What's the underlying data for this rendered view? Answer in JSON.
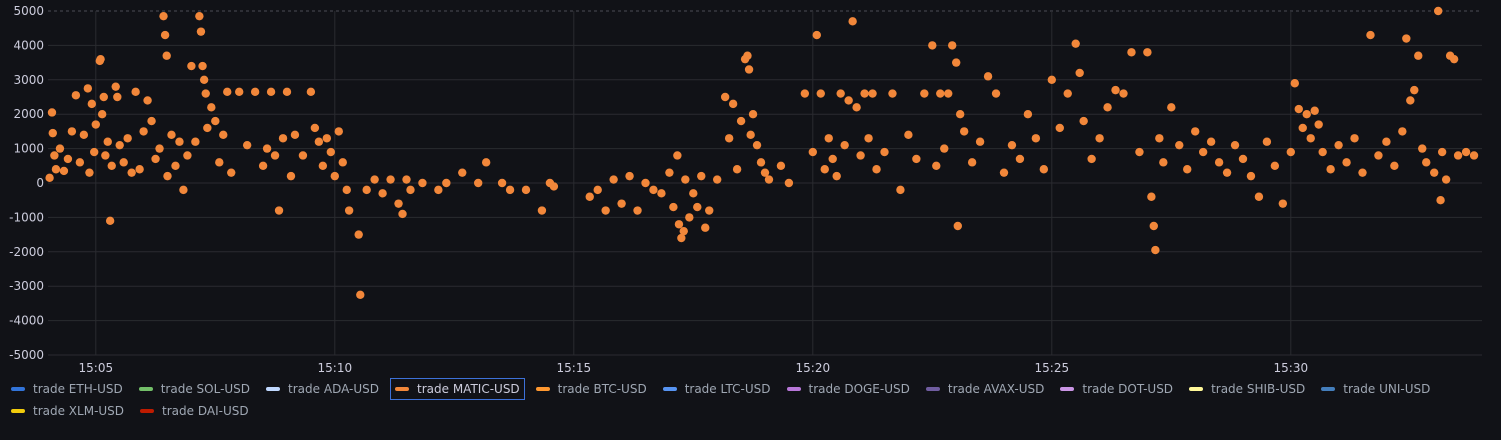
{
  "chart_data": {
    "type": "scatter",
    "title": "",
    "xlabel": "",
    "ylabel": "",
    "ylim": [
      -5000,
      5000
    ],
    "y_ticks": [
      5000,
      4000,
      3000,
      2000,
      1000,
      0,
      -1000,
      -2000,
      -3000,
      -4000,
      -5000
    ],
    "x_range": [
      "15:04:00",
      "15:34:00"
    ],
    "x_ticks": [
      "15:05",
      "15:10",
      "15:15",
      "15:20",
      "15:25",
      "15:30"
    ],
    "grid": true,
    "legend_position": "bottom",
    "colors": {
      "background": "#111217",
      "grid": "#2a2b30",
      "point": "#f2873a"
    },
    "series": [
      {
        "name": "trade MATIC-USD",
        "color": "#f2873a",
        "points": [
          [
            "15:04:02",
            150
          ],
          [
            "15:04:05",
            2050
          ],
          [
            "15:04:06",
            1450
          ],
          [
            "15:04:08",
            800
          ],
          [
            "15:04:10",
            400
          ],
          [
            "15:04:15",
            1000
          ],
          [
            "15:04:20",
            350
          ],
          [
            "15:04:25",
            700
          ],
          [
            "15:04:30",
            1500
          ],
          [
            "15:04:35",
            2550
          ],
          [
            "15:04:40",
            600
          ],
          [
            "15:04:45",
            1400
          ],
          [
            "15:04:50",
            2750
          ],
          [
            "15:04:55",
            2300
          ],
          [
            "15:05:00",
            1700
          ],
          [
            "15:04:52",
            300
          ],
          [
            "15:04:58",
            900
          ],
          [
            "15:05:05",
            3550
          ],
          [
            "15:05:06",
            3600
          ],
          [
            "15:05:08",
            2000
          ],
          [
            "15:05:10",
            2500
          ],
          [
            "15:05:12",
            800
          ],
          [
            "15:05:15",
            1200
          ],
          [
            "15:05:18",
            -1100
          ],
          [
            "15:05:20",
            500
          ],
          [
            "15:05:25",
            2800
          ],
          [
            "15:05:27",
            2500
          ],
          [
            "15:05:30",
            1100
          ],
          [
            "15:05:35",
            600
          ],
          [
            "15:05:40",
            1300
          ],
          [
            "15:05:45",
            300
          ],
          [
            "15:05:50",
            2650
          ],
          [
            "15:05:55",
            400
          ],
          [
            "15:06:00",
            1500
          ],
          [
            "15:06:05",
            2400
          ],
          [
            "15:06:10",
            1800
          ],
          [
            "15:06:15",
            700
          ],
          [
            "15:06:20",
            1000
          ],
          [
            "15:06:25",
            4850
          ],
          [
            "15:06:27",
            4300
          ],
          [
            "15:06:29",
            3700
          ],
          [
            "15:06:30",
            200
          ],
          [
            "15:06:35",
            1400
          ],
          [
            "15:06:40",
            500
          ],
          [
            "15:06:45",
            1200
          ],
          [
            "15:06:50",
            -200
          ],
          [
            "15:06:55",
            800
          ],
          [
            "15:07:00",
            3400
          ],
          [
            "15:07:05",
            1200
          ],
          [
            "15:07:10",
            4850
          ],
          [
            "15:07:12",
            4400
          ],
          [
            "15:07:14",
            3400
          ],
          [
            "15:07:16",
            3000
          ],
          [
            "15:07:18",
            2600
          ],
          [
            "15:07:20",
            1600
          ],
          [
            "15:07:25",
            2200
          ],
          [
            "15:07:30",
            1800
          ],
          [
            "15:07:35",
            600
          ],
          [
            "15:07:40",
            1400
          ],
          [
            "15:07:45",
            2650
          ],
          [
            "15:07:50",
            300
          ],
          [
            "15:08:00",
            2650
          ],
          [
            "15:08:10",
            1100
          ],
          [
            "15:08:20",
            2650
          ],
          [
            "15:08:30",
            500
          ],
          [
            "15:08:35",
            1000
          ],
          [
            "15:08:40",
            2650
          ],
          [
            "15:08:45",
            800
          ],
          [
            "15:08:50",
            -800
          ],
          [
            "15:08:55",
            1300
          ],
          [
            "15:09:00",
            2650
          ],
          [
            "15:09:05",
            200
          ],
          [
            "15:09:10",
            1400
          ],
          [
            "15:09:20",
            800
          ],
          [
            "15:09:30",
            2650
          ],
          [
            "15:09:35",
            1600
          ],
          [
            "15:09:40",
            1200
          ],
          [
            "15:09:45",
            500
          ],
          [
            "15:09:50",
            1300
          ],
          [
            "15:09:55",
            900
          ],
          [
            "15:10:00",
            200
          ],
          [
            "15:10:05",
            1500
          ],
          [
            "15:10:10",
            600
          ],
          [
            "15:10:15",
            -200
          ],
          [
            "15:10:18",
            -800
          ],
          [
            "15:10:30",
            -1500
          ],
          [
            "15:10:32",
            -3250
          ],
          [
            "15:10:40",
            -200
          ],
          [
            "15:10:50",
            100
          ],
          [
            "15:11:00",
            -300
          ],
          [
            "15:11:10",
            100
          ],
          [
            "15:11:20",
            -600
          ],
          [
            "15:11:25",
            -900
          ],
          [
            "15:11:30",
            100
          ],
          [
            "15:11:35",
            -200
          ],
          [
            "15:11:50",
            0
          ],
          [
            "15:12:10",
            -200
          ],
          [
            "15:12:20",
            0
          ],
          [
            "15:12:40",
            300
          ],
          [
            "15:13:00",
            0
          ],
          [
            "15:13:10",
            600
          ],
          [
            "15:13:30",
            0
          ],
          [
            "15:13:40",
            -200
          ],
          [
            "15:14:00",
            -200
          ],
          [
            "15:14:20",
            -800
          ],
          [
            "15:14:30",
            0
          ],
          [
            "15:14:35",
            -100
          ],
          [
            "15:15:20",
            -400
          ],
          [
            "15:15:30",
            -200
          ],
          [
            "15:15:40",
            -800
          ],
          [
            "15:15:50",
            100
          ],
          [
            "15:16:00",
            -600
          ],
          [
            "15:16:10",
            200
          ],
          [
            "15:16:20",
            -800
          ],
          [
            "15:16:30",
            0
          ],
          [
            "15:16:40",
            -200
          ],
          [
            "15:16:50",
            -300
          ],
          [
            "15:17:00",
            300
          ],
          [
            "15:17:05",
            -700
          ],
          [
            "15:17:10",
            800
          ],
          [
            "15:17:12",
            -1200
          ],
          [
            "15:17:15",
            -1600
          ],
          [
            "15:17:18",
            -1400
          ],
          [
            "15:17:20",
            100
          ],
          [
            "15:17:25",
            -1000
          ],
          [
            "15:17:30",
            -300
          ],
          [
            "15:17:35",
            -700
          ],
          [
            "15:17:40",
            200
          ],
          [
            "15:17:45",
            -1300
          ],
          [
            "15:17:50",
            -800
          ],
          [
            "15:18:00",
            100
          ],
          [
            "15:18:10",
            2500
          ],
          [
            "15:18:15",
            1300
          ],
          [
            "15:18:20",
            2300
          ],
          [
            "15:18:25",
            400
          ],
          [
            "15:18:30",
            1800
          ],
          [
            "15:18:35",
            3600
          ],
          [
            "15:18:38",
            3700
          ],
          [
            "15:18:40",
            3300
          ],
          [
            "15:18:42",
            1400
          ],
          [
            "15:18:45",
            2000
          ],
          [
            "15:18:50",
            1100
          ],
          [
            "15:18:55",
            600
          ],
          [
            "15:19:00",
            300
          ],
          [
            "15:19:05",
            100
          ],
          [
            "15:19:20",
            500
          ],
          [
            "15:19:30",
            0
          ],
          [
            "15:19:50",
            2600
          ],
          [
            "15:20:00",
            900
          ],
          [
            "15:20:05",
            4300
          ],
          [
            "15:20:10",
            2600
          ],
          [
            "15:20:15",
            400
          ],
          [
            "15:20:20",
            1300
          ],
          [
            "15:20:25",
            700
          ],
          [
            "15:20:30",
            200
          ],
          [
            "15:20:35",
            2600
          ],
          [
            "15:20:40",
            1100
          ],
          [
            "15:20:45",
            2400
          ],
          [
            "15:20:50",
            4700
          ],
          [
            "15:20:55",
            2200
          ],
          [
            "15:21:00",
            800
          ],
          [
            "15:21:05",
            2600
          ],
          [
            "15:21:10",
            1300
          ],
          [
            "15:21:15",
            2600
          ],
          [
            "15:21:20",
            400
          ],
          [
            "15:21:30",
            900
          ],
          [
            "15:21:40",
            2600
          ],
          [
            "15:21:50",
            -200
          ],
          [
            "15:22:00",
            1400
          ],
          [
            "15:22:10",
            700
          ],
          [
            "15:22:20",
            2600
          ],
          [
            "15:22:30",
            4000
          ],
          [
            "15:22:35",
            500
          ],
          [
            "15:22:40",
            2600
          ],
          [
            "15:22:45",
            1000
          ],
          [
            "15:22:50",
            2600
          ],
          [
            "15:22:55",
            4000
          ],
          [
            "15:23:00",
            3500
          ],
          [
            "15:23:02",
            -1250
          ],
          [
            "15:23:05",
            2000
          ],
          [
            "15:23:10",
            1500
          ],
          [
            "15:23:20",
            600
          ],
          [
            "15:23:30",
            1200
          ],
          [
            "15:23:40",
            3100
          ],
          [
            "15:23:50",
            2600
          ],
          [
            "15:24:00",
            300
          ],
          [
            "15:24:10",
            1100
          ],
          [
            "15:24:20",
            700
          ],
          [
            "15:24:30",
            2000
          ],
          [
            "15:24:40",
            1300
          ],
          [
            "15:24:50",
            400
          ],
          [
            "15:25:00",
            3000
          ],
          [
            "15:25:10",
            1600
          ],
          [
            "15:25:20",
            2600
          ],
          [
            "15:25:30",
            4050
          ],
          [
            "15:25:35",
            3200
          ],
          [
            "15:25:40",
            1800
          ],
          [
            "15:25:50",
            700
          ],
          [
            "15:26:00",
            1300
          ],
          [
            "15:26:10",
            2200
          ],
          [
            "15:26:20",
            2700
          ],
          [
            "15:26:30",
            2600
          ],
          [
            "15:26:40",
            3800
          ],
          [
            "15:26:50",
            900
          ],
          [
            "15:27:00",
            3800
          ],
          [
            "15:27:05",
            -400
          ],
          [
            "15:27:08",
            -1250
          ],
          [
            "15:27:10",
            -1950
          ],
          [
            "15:27:15",
            1300
          ],
          [
            "15:27:20",
            600
          ],
          [
            "15:27:30",
            2200
          ],
          [
            "15:27:40",
            1100
          ],
          [
            "15:27:50",
            400
          ],
          [
            "15:28:00",
            1500
          ],
          [
            "15:28:10",
            900
          ],
          [
            "15:28:20",
            1200
          ],
          [
            "15:28:30",
            600
          ],
          [
            "15:28:40",
            300
          ],
          [
            "15:28:50",
            1100
          ],
          [
            "15:29:00",
            700
          ],
          [
            "15:29:10",
            200
          ],
          [
            "15:29:20",
            -400
          ],
          [
            "15:29:30",
            1200
          ],
          [
            "15:29:40",
            500
          ],
          [
            "15:29:50",
            -600
          ],
          [
            "15:30:00",
            900
          ],
          [
            "15:30:05",
            2900
          ],
          [
            "15:30:10",
            2150
          ],
          [
            "15:30:15",
            1600
          ],
          [
            "15:30:20",
            2000
          ],
          [
            "15:30:25",
            1300
          ],
          [
            "15:30:30",
            2100
          ],
          [
            "15:30:35",
            1700
          ],
          [
            "15:30:40",
            900
          ],
          [
            "15:30:50",
            400
          ],
          [
            "15:31:00",
            1100
          ],
          [
            "15:31:10",
            600
          ],
          [
            "15:31:20",
            1300
          ],
          [
            "15:31:30",
            300
          ],
          [
            "15:31:40",
            4300
          ],
          [
            "15:31:50",
            800
          ],
          [
            "15:32:00",
            1200
          ],
          [
            "15:32:10",
            500
          ],
          [
            "15:32:20",
            1500
          ],
          [
            "15:32:25",
            4200
          ],
          [
            "15:32:30",
            2400
          ],
          [
            "15:32:35",
            2700
          ],
          [
            "15:32:40",
            3700
          ],
          [
            "15:32:45",
            1000
          ],
          [
            "15:32:50",
            600
          ],
          [
            "15:33:00",
            300
          ],
          [
            "15:33:05",
            5200
          ],
          [
            "15:33:08",
            -500
          ],
          [
            "15:33:10",
            900
          ],
          [
            "15:33:15",
            100
          ],
          [
            "15:33:20",
            3700
          ],
          [
            "15:33:25",
            3600
          ],
          [
            "15:33:30",
            800
          ],
          [
            "15:33:40",
            900
          ],
          [
            "15:33:50",
            800
          ]
        ]
      }
    ]
  },
  "legend": [
    {
      "label": "trade ETH-USD",
      "color": "#3274d9",
      "active": false
    },
    {
      "label": "trade SOL-USD",
      "color": "#73bf69",
      "active": false
    },
    {
      "label": "trade ADA-USD",
      "color": "#c0d8ff",
      "active": false
    },
    {
      "label": "trade MATIC-USD",
      "color": "#f2873a",
      "active": true
    },
    {
      "label": "trade BTC-USD",
      "color": "#ff9830",
      "active": false
    },
    {
      "label": "trade LTC-USD",
      "color": "#5794f2",
      "active": false
    },
    {
      "label": "trade DOGE-USD",
      "color": "#b877d9",
      "active": false
    },
    {
      "label": "trade AVAX-USD",
      "color": "#705da0",
      "active": false
    },
    {
      "label": "trade DOT-USD",
      "color": "#ca95e5",
      "active": false
    },
    {
      "label": "trade SHIB-USD",
      "color": "#fff899",
      "active": false
    },
    {
      "label": "trade UNI-USD",
      "color": "#447ebc",
      "active": false
    },
    {
      "label": "trade XLM-USD",
      "color": "#f2cc0c",
      "active": false
    },
    {
      "label": "trade DAI-USD",
      "color": "#bf1b00",
      "active": false
    }
  ]
}
